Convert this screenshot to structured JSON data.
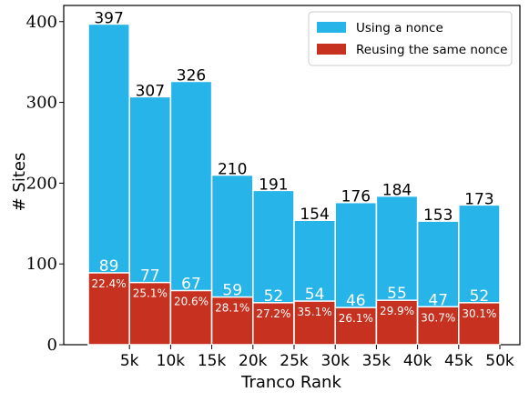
{
  "chart_data": {
    "type": "bar",
    "stacked": "overlay",
    "categories": [
      "5k",
      "10k",
      "15k",
      "20k",
      "25k",
      "30k",
      "35k",
      "40k",
      "45k",
      "50k"
    ],
    "series": [
      {
        "name": "Using a nonce",
        "color": "#27B4E8",
        "values": [
          397,
          307,
          326,
          210,
          191,
          154,
          176,
          184,
          153,
          173
        ]
      },
      {
        "name": "Reusing the same nonce",
        "color": "#C73220",
        "values": [
          89,
          77,
          67,
          59,
          52,
          54,
          46,
          55,
          47,
          52
        ],
        "percent_labels": [
          "22.4%",
          "25.1%",
          "20.6%",
          "28.1%",
          "27.2%",
          "35.1%",
          "26.1%",
          "29.9%",
          "30.7%",
          "30.1%"
        ]
      }
    ],
    "xlabel": "Tranco Rank",
    "ylabel": "# Sites",
    "ylim": [
      0,
      420
    ],
    "yticks": [
      0,
      100,
      200,
      300,
      400
    ],
    "grid": false,
    "legend_position": "top-right"
  }
}
